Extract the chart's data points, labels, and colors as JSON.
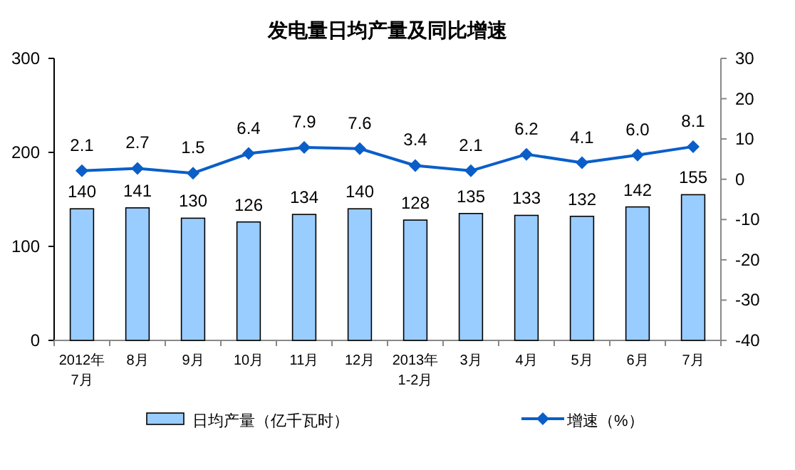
{
  "chart_data": {
    "type": "bar",
    "title": "发电量日均产量及同比增速",
    "categories": [
      "2012年\n7月",
      "8月",
      "9月",
      "10月",
      "11月",
      "12月",
      "2013年\n1-2月",
      "3月",
      "4月",
      "5月",
      "6月",
      "7月"
    ],
    "series": [
      {
        "name": "日均产量（亿千瓦时）",
        "color": "#99ccff",
        "axis": "y",
        "values": [
          140,
          141,
          130,
          126,
          134,
          140,
          128,
          135,
          133,
          132,
          142,
          155
        ]
      },
      {
        "name": "增速（%）",
        "type": "line",
        "color": "#0a5ec8",
        "axis": "y2",
        "marker": "diamond",
        "values": [
          2.1,
          2.7,
          1.5,
          6.4,
          7.9,
          7.6,
          3.4,
          2.1,
          6.2,
          4.1,
          6.0,
          8.1
        ],
        "value_labels": [
          "2.1",
          "2.7",
          "1.5",
          "6.4",
          "7.9",
          "7.6",
          "3.4",
          "2.1",
          "6.2",
          "4.1",
          "6.0",
          "8.1"
        ]
      }
    ],
    "ylim": [
      0,
      300
    ],
    "yticks": [
      0,
      100,
      200,
      300
    ],
    "y2lim": [
      -40,
      30
    ],
    "y2ticks": [
      -40,
      -30,
      -20,
      -10,
      0,
      10,
      20,
      30
    ],
    "data_labels": true,
    "legend": "bottom",
    "grid": false
  }
}
